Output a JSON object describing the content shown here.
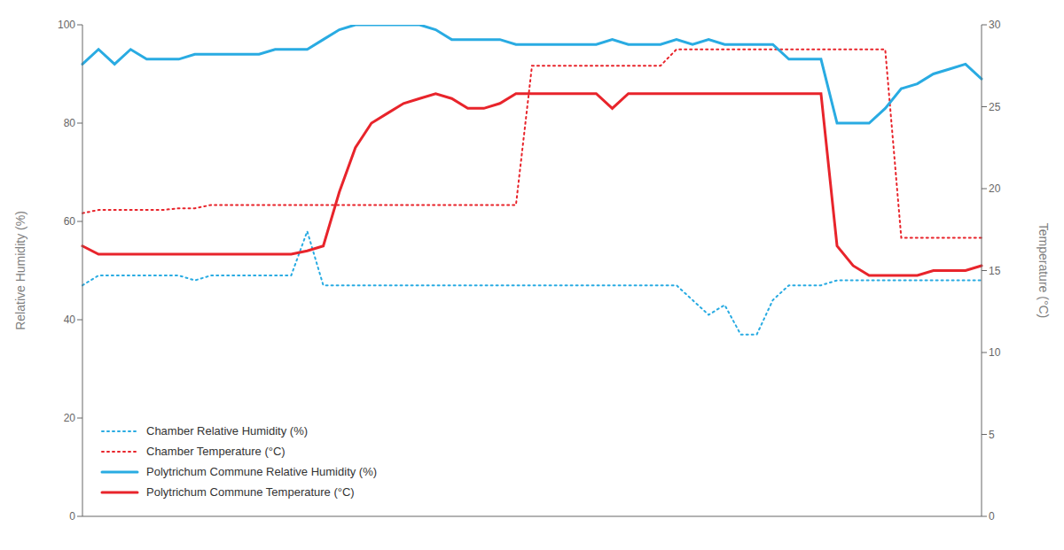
{
  "chart_data": {
    "type": "line",
    "categories": [
      null,
      null,
      null,
      null,
      null,
      null,
      null,
      null,
      null,
      null,
      null,
      null,
      null,
      null,
      null,
      null,
      null,
      null,
      null,
      null,
      null,
      null,
      null,
      null,
      null,
      null,
      null,
      null,
      null,
      null,
      null,
      null,
      null,
      null,
      null,
      null,
      null,
      null,
      null,
      null,
      null,
      null,
      null,
      null,
      null,
      null,
      null,
      null,
      null,
      null,
      null,
      null,
      null,
      null,
      null,
      null,
      null
    ],
    "y_label": "Relative Humidity (%)",
    "y2_label": "Temperature (°C)",
    "ylim": [
      0,
      100
    ],
    "yticks": [
      0,
      20,
      40,
      60,
      80,
      100
    ],
    "y2lim": [
      0,
      30
    ],
    "y2ticks": [
      0,
      5,
      10,
      15,
      20,
      25,
      30
    ],
    "grid": false,
    "legend": "lower left",
    "series": [
      {
        "name": "Chamber Relative Humidity (%)",
        "color": "#29ABE2",
        "line_style": "dotted",
        "axis": "y",
        "values": [
          47,
          49,
          49,
          49,
          49,
          49,
          49,
          48,
          49,
          49,
          49,
          49,
          49,
          49,
          58,
          47,
          47,
          47,
          47,
          47,
          47,
          47,
          47,
          47,
          47,
          47,
          47,
          47,
          47,
          47,
          47,
          47,
          47,
          47,
          47,
          47,
          47,
          47,
          44,
          41,
          43,
          37,
          37,
          44,
          47,
          47,
          47,
          48,
          48,
          48,
          48,
          48,
          48,
          48,
          48,
          48,
          48
        ]
      },
      {
        "name": "Chamber Temperature (°C)",
        "color": "#E8242B",
        "line_style": "dotted",
        "axis": "y2",
        "values": [
          18.5,
          18.7,
          18.7,
          18.7,
          18.7,
          18.7,
          18.8,
          18.8,
          19.0,
          19.0,
          19.0,
          19.0,
          19.0,
          19.0,
          19.0,
          19.0,
          19.0,
          19.0,
          19.0,
          19.0,
          19.0,
          19.0,
          19.0,
          19.0,
          19.0,
          19.0,
          19.0,
          19.0,
          27.5,
          27.5,
          27.5,
          27.5,
          27.5,
          27.5,
          27.5,
          27.5,
          27.5,
          28.5,
          28.5,
          28.5,
          28.5,
          28.5,
          28.5,
          28.5,
          28.5,
          28.5,
          28.5,
          28.5,
          28.5,
          28.5,
          28.5,
          17.0,
          17.0,
          17.0,
          17.0,
          17.0,
          17.0
        ]
      },
      {
        "name": "Polytrichum Commune Relative Humidity (%)",
        "color": "#29ABE2",
        "line_style": "solid",
        "axis": "y",
        "values": [
          92,
          95,
          92,
          95,
          93,
          93,
          93,
          94,
          94,
          94,
          94,
          94,
          95,
          95,
          95,
          97,
          99,
          100,
          100,
          100,
          100,
          100,
          99,
          97,
          97,
          97,
          97,
          96,
          96,
          96,
          96,
          96,
          96,
          97,
          96,
          96,
          96,
          97,
          96,
          97,
          96,
          96,
          96,
          96,
          93,
          93,
          93,
          80,
          80,
          80,
          83,
          87,
          88,
          90,
          91,
          92,
          89
        ]
      },
      {
        "name": "Polytrichum Commune Temperature (°C)",
        "color": "#E8242B",
        "line_style": "solid",
        "axis": "y2",
        "values": [
          16.5,
          16.0,
          16.0,
          16.0,
          16.0,
          16.0,
          16.0,
          16.0,
          16.0,
          16.0,
          16.0,
          16.0,
          16.0,
          16.0,
          16.2,
          16.5,
          19.8,
          22.5,
          24.0,
          24.6,
          25.2,
          25.5,
          25.8,
          25.5,
          24.9,
          24.9,
          25.2,
          25.8,
          25.8,
          25.8,
          25.8,
          25.8,
          25.8,
          24.9,
          25.8,
          25.8,
          25.8,
          25.8,
          25.8,
          25.8,
          25.8,
          25.8,
          25.8,
          25.8,
          25.8,
          25.8,
          25.8,
          16.5,
          15.3,
          14.7,
          14.7,
          14.7,
          14.7,
          15.0,
          15.0,
          15.0,
          15.3
        ]
      }
    ]
  }
}
